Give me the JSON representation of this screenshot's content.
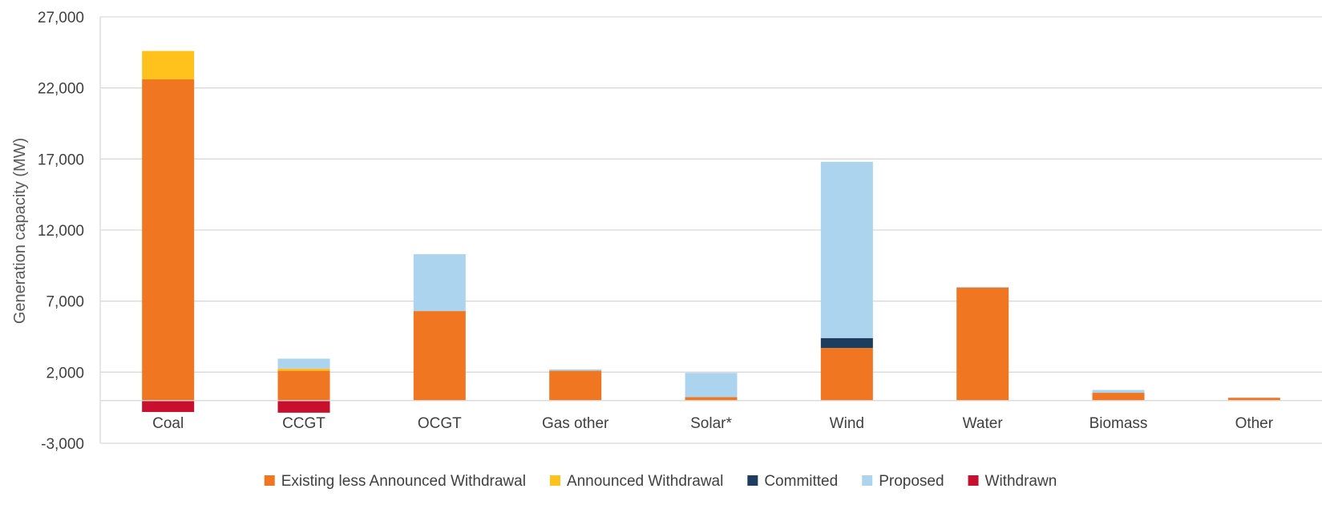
{
  "chart_data": {
    "type": "bar",
    "stacked": true,
    "title": "",
    "xlabel": "",
    "ylabel": "Generation capacity (MW)",
    "ylim": [
      -3000,
      27000
    ],
    "yticks": [
      "27,000",
      "22,000",
      "17,000",
      "12,000",
      "7,000",
      "2,000",
      "-3,000"
    ],
    "ytick_values": [
      27000,
      22000,
      17000,
      12000,
      7000,
      2000,
      -3000
    ],
    "grid": true,
    "legend_position": "bottom",
    "categories": [
      "Coal",
      "CCGT",
      "OCGT",
      "Gas other",
      "Solar*",
      "Wind",
      "Water",
      "Biomass",
      "Other"
    ],
    "series": [
      {
        "name": "Existing less Announced Withdrawal",
        "color": "#f07622",
        "values": [
          22600,
          2100,
          6300,
          2100,
          250,
          3700,
          7950,
          550,
          200
        ]
      },
      {
        "name": "Announced Withdrawal",
        "color": "#ffc21d",
        "values": [
          2000,
          150,
          0,
          0,
          0,
          0,
          0,
          0,
          0
        ]
      },
      {
        "name": "Committed",
        "color": "#1c3d5e",
        "values": [
          0,
          0,
          0,
          0,
          0,
          700,
          0,
          0,
          0
        ]
      },
      {
        "name": "Proposed",
        "color": "#acd4ef",
        "values": [
          0,
          700,
          4000,
          100,
          1700,
          12400,
          50,
          200,
          0
        ]
      },
      {
        "name": "Withdrawn",
        "color": "#c8102e",
        "values": [
          -800,
          -850,
          0,
          0,
          0,
          0,
          0,
          0,
          0
        ]
      }
    ]
  }
}
